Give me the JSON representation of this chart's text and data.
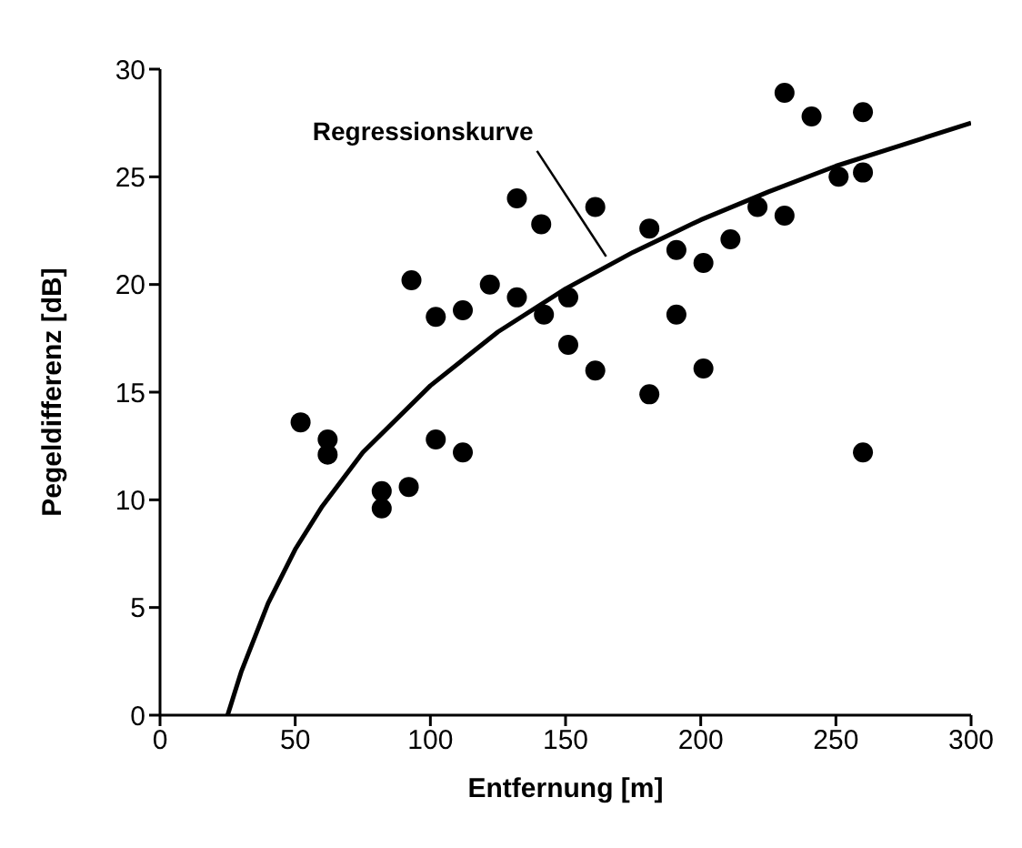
{
  "chart_data": {
    "type": "scatter",
    "xlabel": "Entfernung [m]",
    "ylabel": "Pegeldifferenz [dB]",
    "xlim": [
      0,
      300
    ],
    "xticks": [
      0,
      50,
      100,
      150,
      200,
      250,
      300
    ],
    "ylim": [
      0,
      30
    ],
    "yticks": [
      0,
      5,
      10,
      15,
      20,
      25,
      30
    ],
    "grid": false,
    "marker": "circle",
    "annotations": [
      {
        "text": "Regressionskurve",
        "x": 165,
        "y": 21.3
      }
    ],
    "series": [
      {
        "color": "#000000",
        "x": [
          52,
          62,
          62,
          82,
          82,
          92,
          93,
          102,
          102,
          112,
          112,
          122,
          132,
          132,
          141,
          142,
          151,
          151,
          161,
          161,
          181,
          181,
          191,
          191,
          201,
          201,
          211,
          221,
          231,
          231,
          241,
          251,
          260,
          260,
          260
        ],
        "values": [
          13.6,
          12.8,
          12.1,
          10.4,
          9.6,
          10.6,
          20.2,
          18.5,
          12.8,
          18.8,
          12.2,
          20,
          19.4,
          24,
          22.8,
          18.6,
          19.4,
          17.2,
          23.6,
          16,
          22.6,
          14.9,
          21.6,
          18.6,
          21,
          16.1,
          22.1,
          23.6,
          23.2,
          28.9,
          27.8,
          25,
          25.2,
          28,
          12.2
        ]
      },
      {
        "type": "line",
        "color": "#000000",
        "marker": "none",
        "x": [
          25,
          30,
          40,
          50,
          60,
          75,
          100,
          125,
          150,
          175,
          200,
          225,
          250,
          275,
          300
        ],
        "values": [
          0,
          2.0,
          5.2,
          7.7,
          9.7,
          12.2,
          15.3,
          17.8,
          19.8,
          21.5,
          23.0,
          24.3,
          25.5,
          26.5,
          27.5
        ]
      }
    ]
  }
}
